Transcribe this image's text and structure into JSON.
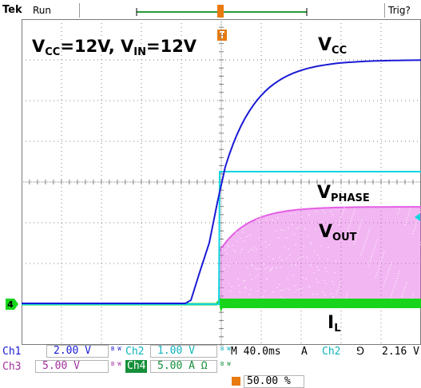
{
  "header": {
    "brand": "Tek",
    "run_status": "Run",
    "trigger_status": "Trig?"
  },
  "annotations": {
    "title_pre1": "V",
    "title_sub1": "CC",
    "title_mid": "=12V, V",
    "title_sub2": "IN",
    "title_post": "=12V",
    "vcc_main": "V",
    "vcc_sub": "CC",
    "vphase_main": "V",
    "vphase_sub": "PHASE",
    "vout_main": "V",
    "vout_sub": "OUT",
    "il_main": "I",
    "il_sub": "L"
  },
  "channel4_marker": "4",
  "readouts": {
    "ch1_label": "Ch1",
    "ch1_value": "2.00 V",
    "ch2_label": "Ch2",
    "ch2_value": "1.00 V",
    "ch3_label": "Ch3",
    "ch3_value": "5.00 V",
    "ch4_label": "Ch4",
    "ch4_value": "5.00 A Ω",
    "bw_label": "B W",
    "timebase": "M 40.0ms",
    "trigger_mode": "A",
    "trigger_source": "Ch2",
    "trigger_slope": "⅁",
    "trigger_level": "2.16 V",
    "horizontal_position": "50.00 %"
  },
  "colors": {
    "ch1": "#1a1ad6",
    "ch2": "#11d4e0",
    "ch3": "#e35ee3",
    "ch4": "#18d51c",
    "trigger": "#e87a10",
    "grid": "#808080"
  }
}
